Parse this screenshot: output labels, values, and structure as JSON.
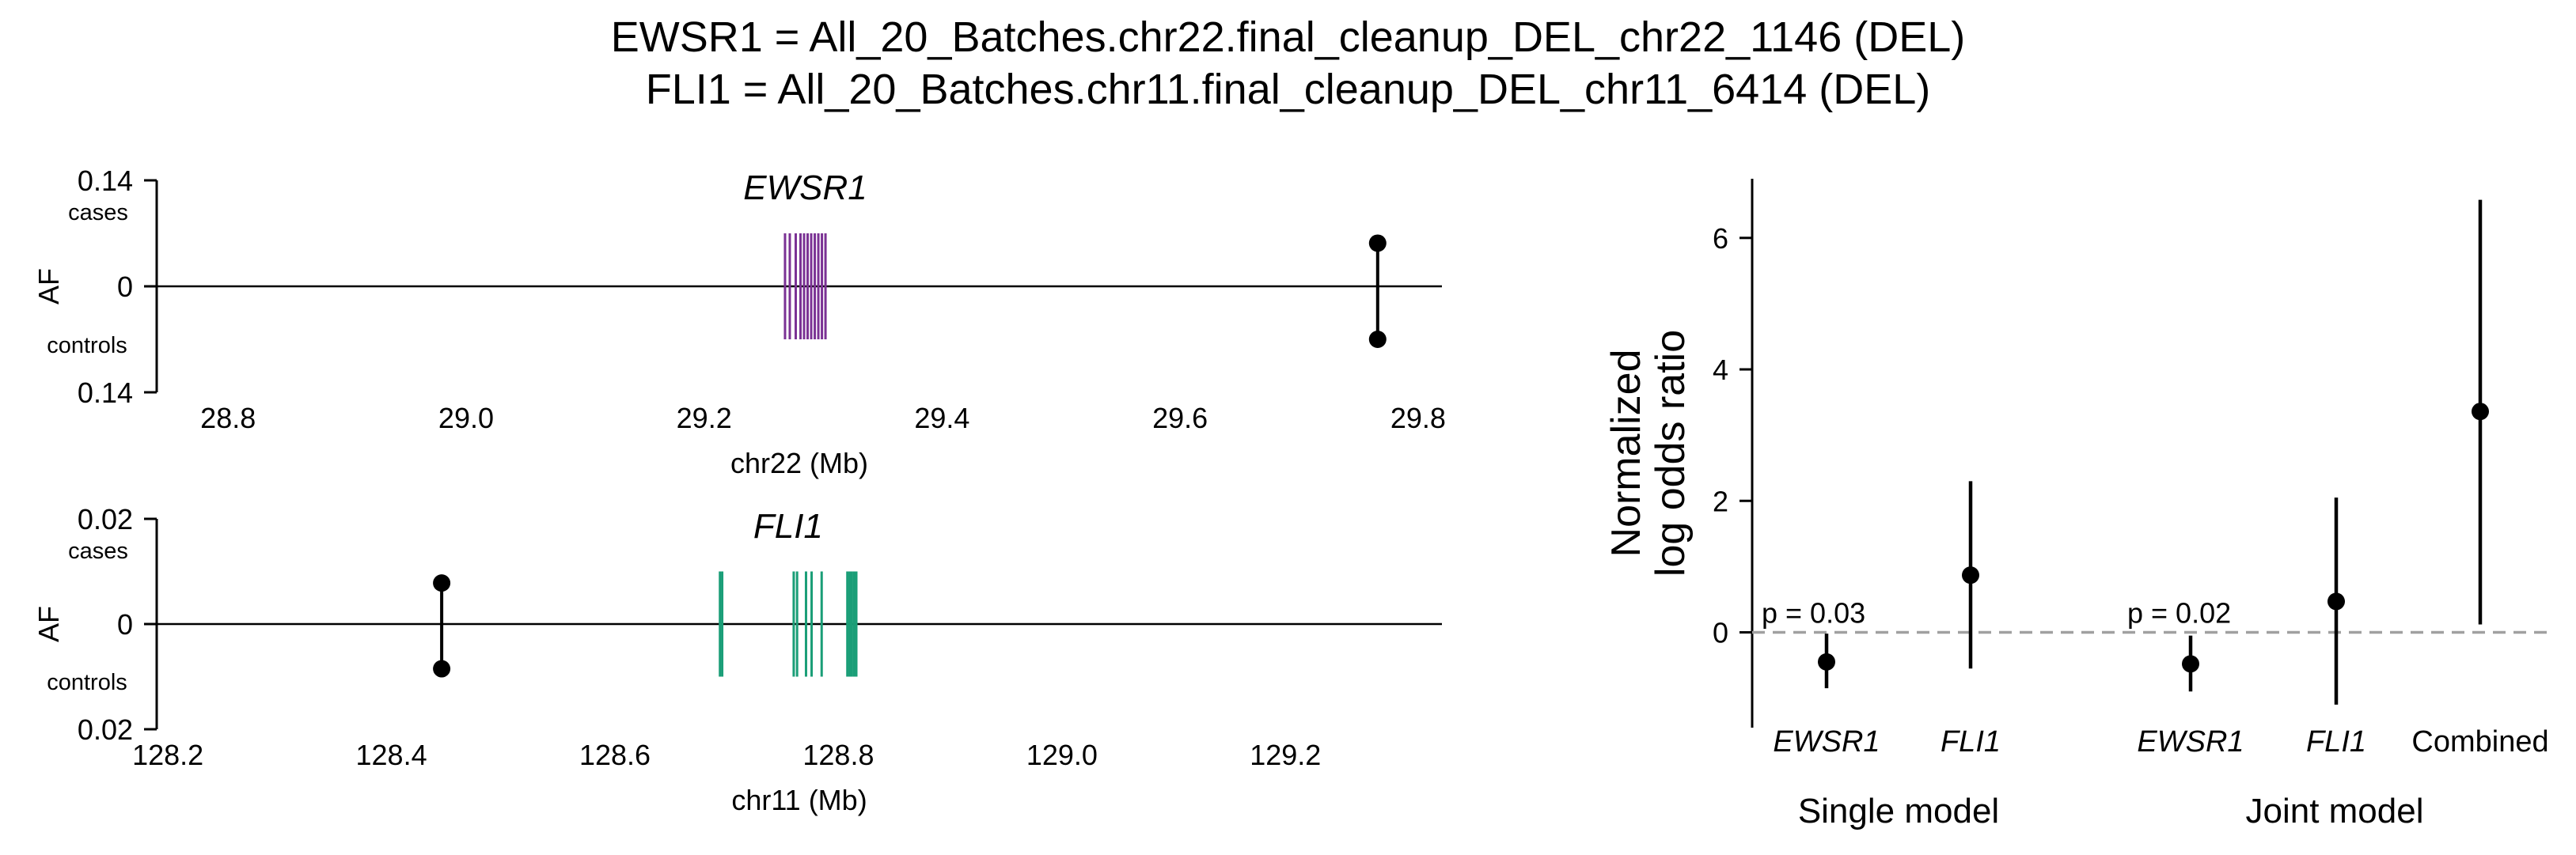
{
  "figure": {
    "title_lines": [
      "EWSR1 = All_20_Batches.chr22.final_cleanup_DEL_chr22_1146 (DEL)",
      "FLI1 = All_20_Batches.chr11.final_cleanup_DEL_chr11_6414 (DEL)"
    ]
  },
  "chart_data": [
    {
      "type": "locus",
      "gene": "EWSR1",
      "gene_color": "#7b3294",
      "xlabel": "chr22 (Mb)",
      "ylabel": "AF",
      "xlim": [
        28.74,
        29.82
      ],
      "xticks": [
        28.8,
        29.0,
        29.2,
        29.4,
        29.6,
        29.8
      ],
      "xtick_labels": [
        "28.8",
        "29.0",
        "29.2",
        "29.4",
        "29.6",
        "29.8"
      ],
      "ylim": [
        -0.14,
        0.14
      ],
      "yticks": [
        0.14,
        0,
        -0.14
      ],
      "ytick_labels": [
        "0.14",
        "0",
        "0.14"
      ],
      "cases_label": "cases",
      "controls_label": "controls",
      "exon_positions_mb": [
        29.268,
        29.272,
        29.277,
        29.281,
        29.284,
        29.287,
        29.29,
        29.293,
        29.296,
        29.299,
        29.302
      ],
      "variant": {
        "position_mb": 29.766,
        "af_cases": 0.057,
        "af_controls": 0.07
      }
    },
    {
      "type": "locus",
      "gene": "FLI1",
      "gene_color": "#1a9e77",
      "xlabel": "chr11 (Mb)",
      "ylabel": "AF",
      "xlim": [
        128.19,
        129.34
      ],
      "xticks": [
        128.2,
        128.4,
        128.6,
        128.8,
        129.0,
        129.2
      ],
      "xtick_labels": [
        "128.2",
        "128.4",
        "128.6",
        "128.8",
        "129.0",
        "129.2"
      ],
      "ylim": [
        -0.02,
        0.02
      ],
      "yticks": [
        0.02,
        0,
        -0.02
      ],
      "ytick_labels": [
        "0.02",
        "0",
        "0.02"
      ],
      "cases_label": "cases",
      "controls_label": "controls",
      "exon_positions_mb": [
        128.694,
        128.696,
        128.76,
        128.763,
        128.771,
        128.776,
        128.785,
        128.808,
        128.81,
        128.812,
        128.814,
        128.816
      ],
      "variant": {
        "position_mb": 128.445,
        "af_cases": 0.0078,
        "af_controls": 0.0085
      }
    },
    {
      "type": "scatter",
      "ylabel_lines": [
        "Normalized",
        "log odds ratio"
      ],
      "ylim": [
        -1.45,
        6.9
      ],
      "yticks": [
        0,
        2,
        4,
        6
      ],
      "ytick_labels": [
        "0",
        "2",
        "4",
        "6"
      ],
      "reference_line": 0,
      "categories": [
        "EWSR1",
        "FLI1",
        "EWSR1",
        "FLI1",
        "Combined"
      ],
      "category_italic": [
        true,
        true,
        true,
        true,
        false
      ],
      "groups": [
        {
          "label": "Single model",
          "p_text": "p = 0.03"
        },
        {
          "label": "Joint model",
          "p_text": "p = 0.02"
        }
      ],
      "points": [
        {
          "category": "EWSR1",
          "group": "Single model",
          "estimate": -0.45,
          "ci_low": -0.85,
          "ci_high": -0.02
        },
        {
          "category": "FLI1",
          "group": "Single model",
          "estimate": 0.87,
          "ci_low": -0.55,
          "ci_high": 2.3
        },
        {
          "category": "EWSR1",
          "group": "Joint model",
          "estimate": -0.48,
          "ci_low": -0.9,
          "ci_high": -0.05
        },
        {
          "category": "FLI1",
          "group": "Joint model",
          "estimate": 0.47,
          "ci_low": -1.1,
          "ci_high": 2.05
        },
        {
          "category": "Combined",
          "group": "Joint model",
          "estimate": 3.36,
          "ci_low": 0.12,
          "ci_high": 6.58
        }
      ]
    }
  ]
}
